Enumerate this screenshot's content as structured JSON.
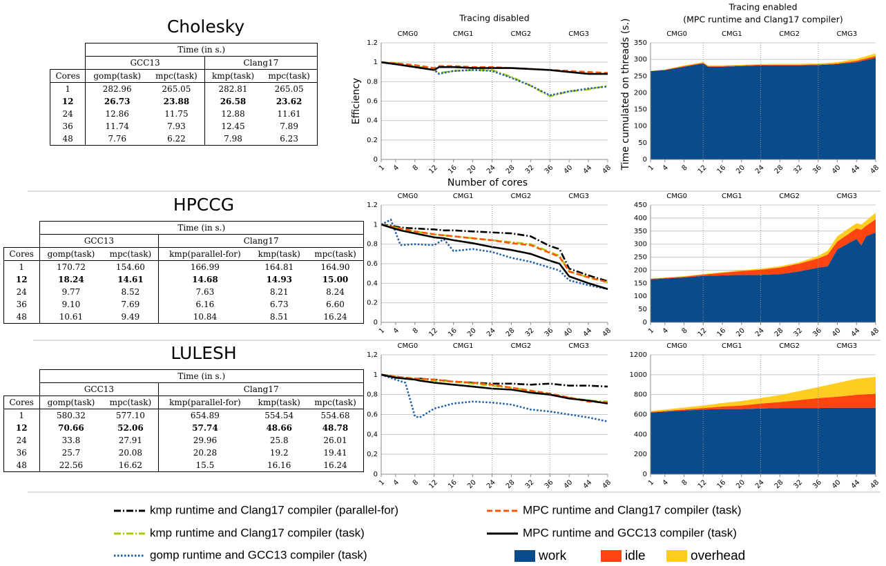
{
  "tables": [
    {
      "title": "Cholesky",
      "header": "Time (in s.)",
      "first_column": "Cores",
      "bold_row": 1,
      "groups": [
        {
          "label": "GCC13",
          "columns": [
            "gomp(task)",
            "mpc(task)"
          ]
        },
        {
          "label": "Clang17",
          "columns": [
            "kmp(task)",
            "mpc(task)"
          ]
        }
      ],
      "rows": [
        [
          "1",
          "282.96",
          "265.05",
          "282.81",
          "265.05"
        ],
        [
          "12",
          "26.73",
          "23.88",
          "26.58",
          "23.62"
        ],
        [
          "24",
          "12.86",
          "11.75",
          "12.88",
          "11.61"
        ],
        [
          "36",
          "11.74",
          "7.93",
          "12.45",
          "7.89"
        ],
        [
          "48",
          "7.76",
          "6.22",
          "7.98",
          "6.23"
        ]
      ]
    },
    {
      "title": "HPCCG",
      "header": "Time (in s.)",
      "first_column": "Cores",
      "bold_row": 1,
      "groups": [
        {
          "label": "GCC13",
          "columns": [
            "gomp(task)",
            "mpc(task)"
          ]
        },
        {
          "label": "Clang17",
          "columns": [
            "kmp(parallel-for)",
            "kmp(task)",
            "mpc(task)"
          ]
        }
      ],
      "rows": [
        [
          "1",
          "170.72",
          "154.60",
          "166.99",
          "164.81",
          "164.90"
        ],
        [
          "12",
          "18.24",
          "14.61",
          "14.68",
          "14.93",
          "15.00"
        ],
        [
          "24",
          "9.77",
          "8.52",
          "7.63",
          "8.21",
          "8.24"
        ],
        [
          "36",
          "9.10",
          "7.69",
          "6.16",
          "6.73",
          "6.60"
        ],
        [
          "48",
          "10.61",
          "9.49",
          "10.84",
          "8.51",
          "16.24"
        ]
      ]
    },
    {
      "title": "LULESH",
      "header": "Time (in s.)",
      "first_column": "Cores",
      "bold_row": 1,
      "groups": [
        {
          "label": "GCC13",
          "columns": [
            "gomp(task)",
            "mpc(task)"
          ]
        },
        {
          "label": "Clang17",
          "columns": [
            "kmp(parallel-for)",
            "kmp(task)",
            "mpc(task)"
          ]
        }
      ],
      "rows": [
        [
          "1",
          "580.32",
          "577.10",
          "654.89",
          "554.54",
          "554.68"
        ],
        [
          "12",
          "70.66",
          "52.06",
          "57.74",
          "48.66",
          "48.78"
        ],
        [
          "24",
          "33.8",
          "27.91",
          "29.96",
          "25.8",
          "26.01"
        ],
        [
          "36",
          "25.7",
          "20.08",
          "20.28",
          "19.2",
          "19.41"
        ],
        [
          "48",
          "22.56",
          "16.62",
          "15.5",
          "16.16",
          "16.24"
        ]
      ]
    }
  ],
  "chart_data": [
    {
      "type": "line",
      "title": "Tracing disabled",
      "ylabel": "Efficiency",
      "xlabel": "Number of cores",
      "grid": true,
      "xlim": [
        1,
        48
      ],
      "xticks": [
        1,
        4,
        8,
        12,
        16,
        20,
        24,
        28,
        32,
        36,
        40,
        44,
        48
      ],
      "ylim": [
        0,
        1.2
      ],
      "yticks": [
        0,
        0.2,
        0.4,
        0.6,
        0.8,
        1,
        1.2
      ],
      "vlines": [
        12,
        24,
        36
      ],
      "annotations": [
        "CMG0",
        "CMG1",
        "CMG2",
        "CMG3"
      ],
      "x": [
        1,
        4,
        8,
        12,
        13,
        16,
        20,
        24,
        28,
        32,
        36,
        40,
        44,
        48
      ],
      "series": [
        {
          "name": "kmp runtime and Clang17 compiler (task)",
          "color": "#aacc00",
          "dash": "dashdot",
          "values": [
            1,
            0.99,
            0.96,
            0.93,
            0.89,
            0.91,
            0.92,
            0.92,
            0.85,
            0.76,
            0.65,
            0.7,
            0.72,
            0.76
          ]
        },
        {
          "name": "gomp runtime and GCC13 compiler (task)",
          "color": "#1f5fa8",
          "dash": "dotted",
          "values": [
            1,
            0.98,
            0.95,
            0.92,
            0.88,
            0.91,
            0.92,
            0.91,
            0.84,
            0.76,
            0.66,
            0.7,
            0.73,
            0.75
          ]
        },
        {
          "name": "MPC runtime and Clang17 compiler (task)",
          "color": "#ff5500",
          "dash": "dashed",
          "values": [
            1,
            0.99,
            0.97,
            0.94,
            0.96,
            0.96,
            0.95,
            0.95,
            0.94,
            0.93,
            0.92,
            0.91,
            0.9,
            0.89
          ]
        },
        {
          "name": "MPC runtime and GCC13 compiler (task)",
          "color": "#000000",
          "dash": "solid",
          "values": [
            1,
            0.98,
            0.95,
            0.92,
            0.95,
            0.95,
            0.94,
            0.94,
            0.94,
            0.93,
            0.92,
            0.9,
            0.88,
            0.88
          ]
        }
      ]
    },
    {
      "type": "stacked-area",
      "title": "Tracing enabled",
      "subtitle": "(MPC runtime and Clang17 compiler)",
      "ylabel": "Time cumulated on threads (s.)",
      "grid": true,
      "xlim": [
        1,
        48
      ],
      "xticks": [
        1,
        4,
        8,
        12,
        16,
        20,
        24,
        28,
        32,
        36,
        40,
        44,
        48
      ],
      "ylim": [
        0,
        350
      ],
      "yticks": [
        0,
        50,
        100,
        150,
        200,
        250,
        300,
        350
      ],
      "vlines": [
        12,
        24,
        36
      ],
      "annotations": [
        "CMG0",
        "CMG1",
        "CMG2",
        "CMG3"
      ],
      "x": [
        1,
        4,
        8,
        12,
        13,
        16,
        20,
        24,
        28,
        32,
        36,
        40,
        44,
        48
      ],
      "series": [
        {
          "name": "work",
          "color": "#0b4a8b",
          "values": [
            265,
            268,
            278,
            288,
            278,
            278,
            280,
            282,
            282,
            282,
            283,
            286,
            292,
            305
          ]
        },
        {
          "name": "idle",
          "color": "#ff4411",
          "values": [
            0,
            1,
            2,
            2,
            2,
            2,
            2,
            2,
            2,
            2,
            2,
            2,
            4,
            5
          ]
        },
        {
          "name": "overhead",
          "color": "#ffcc22",
          "values": [
            1,
            1,
            2,
            2,
            2,
            2,
            2,
            2,
            3,
            3,
            3,
            4,
            6,
            8
          ]
        }
      ]
    },
    {
      "type": "line",
      "grid": true,
      "xlim": [
        1,
        48
      ],
      "xticks": [
        1,
        4,
        8,
        12,
        16,
        20,
        24,
        28,
        32,
        36,
        40,
        44,
        48
      ],
      "ylim": [
        0,
        1.2
      ],
      "yticks": [
        0,
        0.2,
        0.4,
        0.6,
        0.8,
        1,
        1.2
      ],
      "vlines": [
        12,
        24,
        36
      ],
      "annotations": [
        "CMG0",
        "CMG1",
        "CMG2",
        "CMG3"
      ],
      "x": [
        1,
        3,
        5,
        8,
        12,
        14,
        16,
        20,
        24,
        28,
        32,
        36,
        38,
        40,
        44,
        48
      ],
      "series": [
        {
          "name": "kmp runtime and Clang17 compiler (parallel-for)",
          "color": "#000000",
          "dash": "dashdot",
          "values": [
            1,
            0.99,
            0.97,
            0.96,
            0.95,
            0.94,
            0.94,
            0.93,
            0.92,
            0.91,
            0.88,
            0.78,
            0.75,
            0.55,
            0.48,
            0.42
          ]
        },
        {
          "name": "kmp runtime and Clang17 compiler (task)",
          "color": "#aacc00",
          "dash": "dashdot",
          "values": [
            1,
            0.98,
            0.96,
            0.93,
            0.9,
            0.89,
            0.88,
            0.86,
            0.84,
            0.82,
            0.8,
            0.72,
            0.68,
            0.52,
            0.46,
            0.41
          ]
        },
        {
          "name": "gomp runtime and GCC13 compiler (task)",
          "color": "#1f5fa8",
          "dash": "dotted",
          "values": [
            1,
            1.05,
            0.79,
            0.8,
            0.79,
            0.85,
            0.73,
            0.75,
            0.72,
            0.66,
            0.62,
            0.56,
            0.53,
            0.43,
            0.38,
            0.34
          ]
        },
        {
          "name": "MPC runtime and Clang17 compiler (task)",
          "color": "#ff5500",
          "dash": "dashed",
          "values": [
            1,
            0.98,
            0.96,
            0.93,
            0.9,
            0.89,
            0.88,
            0.86,
            0.84,
            0.81,
            0.79,
            0.71,
            0.67,
            0.52,
            0.46,
            0.41
          ]
        },
        {
          "name": "MPC runtime and GCC13 compiler (task)",
          "color": "#000000",
          "dash": "solid",
          "values": [
            1,
            0.97,
            0.94,
            0.91,
            0.87,
            0.86,
            0.84,
            0.81,
            0.77,
            0.74,
            0.7,
            0.63,
            0.6,
            0.47,
            0.4,
            0.34
          ]
        }
      ]
    },
    {
      "type": "stacked-area",
      "grid": true,
      "xlim": [
        1,
        48
      ],
      "xticks": [
        1,
        4,
        8,
        12,
        16,
        20,
        24,
        28,
        32,
        36,
        40,
        44,
        48
      ],
      "ylim": [
        0,
        450
      ],
      "yticks": [
        0,
        50,
        100,
        150,
        200,
        250,
        300,
        350,
        400,
        450
      ],
      "vlines": [
        12,
        24,
        36
      ],
      "annotations": [
        "CMG0",
        "CMG1",
        "CMG2",
        "CMG3"
      ],
      "x": [
        1,
        8,
        12,
        16,
        20,
        24,
        28,
        32,
        36,
        38,
        40,
        44,
        45,
        46,
        48
      ],
      "series": [
        {
          "name": "work",
          "color": "#0b4a8b",
          "values": [
            165,
            172,
            178,
            180,
            182,
            182,
            185,
            195,
            210,
            215,
            280,
            320,
            295,
            330,
            345
          ]
        },
        {
          "name": "idle",
          "color": "#ff4411",
          "values": [
            2,
            3,
            5,
            10,
            15,
            20,
            25,
            30,
            35,
            45,
            30,
            40,
            60,
            40,
            50
          ]
        },
        {
          "name": "overhead",
          "color": "#ffcc22",
          "values": [
            1,
            2,
            2,
            3,
            3,
            4,
            5,
            5,
            10,
            15,
            20,
            20,
            20,
            20,
            25
          ]
        }
      ]
    },
    {
      "type": "line",
      "grid": true,
      "xlim": [
        1,
        48
      ],
      "xticks": [
        1,
        4,
        8,
        12,
        16,
        20,
        24,
        28,
        32,
        36,
        40,
        44,
        48
      ],
      "ylim": [
        0,
        1.2
      ],
      "yticks": [
        0,
        {
          "value": 0.2,
          "label": "0,2"
        },
        {
          "value": 0.4,
          "label": "0,4"
        },
        {
          "value": 0.6,
          "label": "0,6"
        },
        {
          "value": 0.8,
          "label": "0,8"
        },
        1,
        {
          "value": 1.2,
          "label": "1,2"
        }
      ],
      "vlines": [
        12,
        24,
        36
      ],
      "annotations": [
        "CMG0",
        "CMG1",
        "CMG2",
        "CMG3"
      ],
      "x": [
        1,
        4,
        6,
        8,
        9,
        12,
        16,
        20,
        24,
        28,
        32,
        36,
        40,
        44,
        48
      ],
      "series": [
        {
          "name": "kmp runtime and Clang17 compiler (parallel-for)",
          "color": "#000000",
          "dash": "dashdot",
          "values": [
            1,
            0.98,
            0.97,
            0.96,
            0.96,
            0.95,
            0.93,
            0.92,
            0.91,
            0.91,
            0.9,
            0.91,
            0.89,
            0.89,
            0.88
          ]
        },
        {
          "name": "kmp runtime and Clang17 compiler (task)",
          "color": "#aacc00",
          "dash": "dashdot",
          "values": [
            1,
            0.98,
            0.97,
            0.96,
            0.95,
            0.94,
            0.93,
            0.91,
            0.89,
            0.87,
            0.84,
            0.8,
            0.77,
            0.74,
            0.73
          ]
        },
        {
          "name": "gomp runtime and GCC13 compiler (task)",
          "color": "#1f5fa8",
          "dash": "dotted",
          "values": [
            1,
            0.95,
            0.92,
            0.58,
            0.57,
            0.66,
            0.71,
            0.73,
            0.72,
            0.7,
            0.65,
            0.63,
            0.6,
            0.57,
            0.53
          ]
        },
        {
          "name": "MPC runtime and Clang17 compiler (task)",
          "color": "#ff5500",
          "dash": "dashed",
          "values": [
            1,
            0.98,
            0.97,
            0.96,
            0.96,
            0.95,
            0.93,
            0.92,
            0.9,
            0.87,
            0.84,
            0.81,
            0.77,
            0.73,
            0.72
          ]
        },
        {
          "name": "MPC runtime and GCC13 compiler (task)",
          "color": "#000000",
          "dash": "solid",
          "values": [
            1,
            0.97,
            0.96,
            0.95,
            0.94,
            0.92,
            0.9,
            0.88,
            0.86,
            0.85,
            0.82,
            0.8,
            0.76,
            0.74,
            0.71
          ]
        }
      ]
    },
    {
      "type": "stacked-area",
      "grid": true,
      "xlim": [
        1,
        48
      ],
      "xticks": [
        1,
        4,
        8,
        12,
        16,
        20,
        24,
        28,
        32,
        36,
        40,
        44,
        48
      ],
      "ylim": [
        0,
        1200
      ],
      "yticks": [
        0,
        200,
        400,
        600,
        800,
        1000,
        1200
      ],
      "vlines": [
        12,
        24,
        36
      ],
      "annotations": [
        "CMG0",
        "CMG1",
        "CMG2",
        "CMG3"
      ],
      "x": [
        1,
        8,
        12,
        16,
        20,
        24,
        28,
        32,
        36,
        40,
        44,
        48
      ],
      "series": [
        {
          "name": "work",
          "color": "#0b4a8b",
          "values": [
            620,
            640,
            650,
            655,
            655,
            660,
            665,
            665,
            665,
            668,
            668,
            668
          ]
        },
        {
          "name": "idle",
          "color": "#ff4411",
          "values": [
            5,
            10,
            15,
            25,
            35,
            50,
            60,
            80,
            100,
            110,
            130,
            140
          ]
        },
        {
          "name": "overhead",
          "color": "#ffcc22",
          "values": [
            10,
            20,
            25,
            35,
            45,
            55,
            70,
            90,
            110,
            140,
            160,
            170
          ]
        }
      ]
    }
  ]
}
